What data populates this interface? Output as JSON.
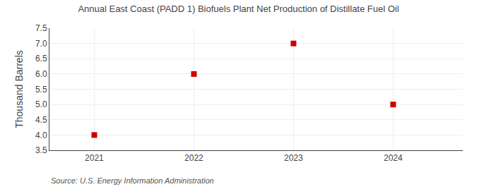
{
  "chart_data": {
    "type": "scatter",
    "title": "Annual East Coast (PADD 1) Biofuels Plant Net Production of Distillate Fuel Oil",
    "ylabel": "Thousand Barrels",
    "annotations": [
      "Source: U.S. Energy Information Administration"
    ],
    "x": [
      2021,
      2022,
      2023,
      2024
    ],
    "values": [
      4.0,
      6.0,
      7.0,
      5.0
    ],
    "color": "#cc0000",
    "marker": "square",
    "xlim": [
      2020.55,
      2024.7
    ],
    "xticks": [
      2021,
      2022,
      2023,
      2024
    ],
    "ylim": [
      3.5,
      7.5
    ],
    "yticks": [
      3.5,
      {
        "value": 4.0,
        "label": "4.0"
      },
      4.5,
      {
        "value": 5.0,
        "label": "5.0"
      },
      5.5,
      {
        "value": 6.0,
        "label": "6.0"
      },
      6.5,
      {
        "value": 7.0,
        "label": "7.0"
      },
      7.5
    ],
    "grid": true
  }
}
